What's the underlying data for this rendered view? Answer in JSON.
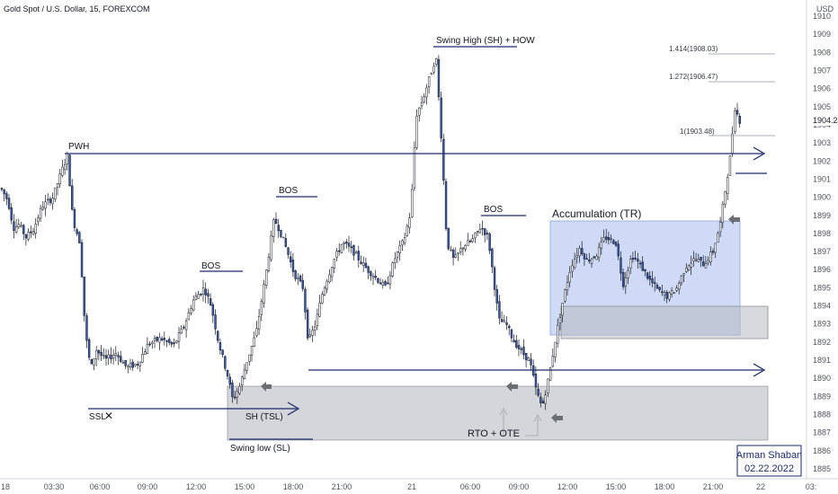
{
  "chart_data": {
    "type": "candlestick",
    "title": "Gold Spot / U.S. Dollar, 15, FOREXCOM",
    "price_unit": "USD",
    "current_price": "1904.24",
    "ylim": [
      1884.5,
      1911
    ],
    "y_ticks": [
      1885,
      1886,
      1887,
      1888,
      1889,
      1890,
      1891,
      1892,
      1893,
      1894,
      1895,
      1896,
      1897,
      1898,
      1899,
      1900,
      1901,
      1902,
      1903,
      1904,
      1905,
      1906,
      1907,
      1908,
      1909,
      1910
    ],
    "x_tick_labels": [
      "18",
      "03:30",
      "06:00",
      "09:00",
      "12:00",
      "15:00",
      "18:00",
      "21:00",
      "21",
      "06:00",
      "09:00",
      "12:00",
      "15:00",
      "18:00",
      "21:00",
      "22",
      "03:"
    ],
    "annotations": {
      "pwh": "PWH",
      "bos_1": "BOS",
      "bos_2": "BOS",
      "bos_3": "BOS",
      "swing_high": "Swing High (SH) + HOW",
      "accumulation": "Accumulation (TR)",
      "ssl": "SSL",
      "ssl_mark": "✕",
      "sh_tsl": "SH (TSL)",
      "swing_low": "Swing low (SL)",
      "rto_ote": "RTO + OTE"
    },
    "fib_levels": [
      {
        "label": "1.414(1908.03)",
        "price": 1908.03
      },
      {
        "label": "1.272(1906.47)",
        "price": 1906.47
      },
      {
        "label": "1(1903.48)",
        "price": 1903.48
      }
    ],
    "author": "Arman Shaban",
    "date": "02.22.2022",
    "colors": {
      "up_body": "#ffffff",
      "down_body": "#3b5bad",
      "wick": "#131722",
      "line": "#1a2b6b",
      "accumulation_fill": "#c5d3f4",
      "zone_fill": "#d4d6da",
      "arrow_marker": "#6b6e73"
    }
  }
}
